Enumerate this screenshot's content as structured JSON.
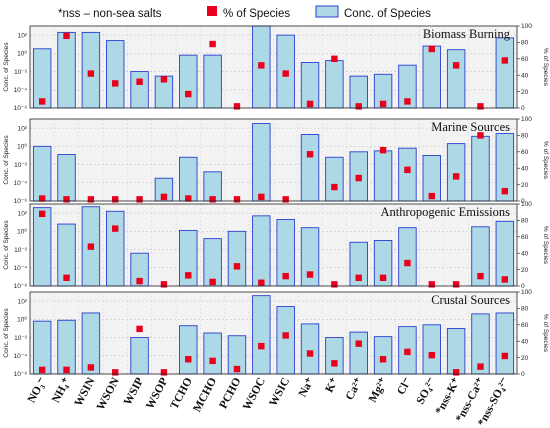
{
  "legend": {
    "note": "*nss – non-sea salts",
    "marker_label": "% of Species",
    "bar_label": "Conc. of Species"
  },
  "colors": {
    "bar_fill": "#add8e6",
    "bar_edge": "#2b3ecf",
    "marker": "#e8001c",
    "panel_bg": "#f3f3f3",
    "grid": "#bdbdbd"
  },
  "chart_data": {
    "type": "bar",
    "categories": [
      "NO₃⁻",
      "NH₄⁺",
      "WSIN",
      "WSON",
      "WSIP",
      "WSOP",
      "TCHO",
      "MCHO",
      "PCHO",
      "WSOC",
      "WSIC",
      "Na⁺",
      "K⁺",
      "Ca²⁺",
      "Mg²⁺",
      "Cl⁻",
      "SO₄²⁻",
      "*nss-K⁺",
      "*nss-Ca²⁺",
      "*nss-SO₄²⁻"
    ],
    "left_axis": {
      "label": "Conc. of Species",
      "scale": "log",
      "ticks": [
        "10⁻⁶",
        "10⁻⁴",
        "10⁻²",
        "10⁰",
        "10²"
      ],
      "range": [
        -6,
        3
      ]
    },
    "right_axis": {
      "label": "% of Species",
      "ticks": [
        "0",
        "20",
        "40",
        "60",
        "80",
        "100"
      ],
      "range": [
        0,
        100
      ]
    },
    "panels": [
      {
        "title": "Biomass Burning",
        "conc_log10": [
          0.5,
          2.3,
          2.3,
          1.4,
          -2.0,
          -2.5,
          -0.2,
          -0.2,
          null,
          3.0,
          2.0,
          -1.0,
          -0.8,
          -2.5,
          -2.3,
          -1.3,
          0.8,
          0.4,
          null,
          1.7
        ],
        "percent": [
          8,
          88,
          42,
          30,
          32,
          35,
          17,
          78,
          2,
          52,
          42,
          5,
          60,
          2,
          5,
          8,
          72,
          52,
          2,
          58
        ]
      },
      {
        "title": "Marine Sources",
        "conc_log10": [
          0.0,
          -0.9,
          null,
          null,
          null,
          -3.5,
          -1.2,
          -2.8,
          null,
          2.5,
          null,
          1.3,
          -1.2,
          -0.6,
          -0.5,
          -0.2,
          -1.0,
          0.3,
          1.1,
          1.4
        ],
        "percent": [
          3,
          2,
          2,
          2,
          2,
          5,
          3,
          2,
          2,
          5,
          2,
          57,
          17,
          28,
          62,
          38,
          6,
          30,
          80,
          12
        ]
      },
      {
        "title": "Anthropogenic Emissions",
        "conc_log10": [
          2.6,
          0.8,
          2.7,
          2.2,
          -2.4,
          null,
          0.1,
          -0.8,
          0.0,
          1.7,
          1.3,
          0.4,
          null,
          -1.2,
          -1.0,
          0.4,
          null,
          null,
          0.5,
          1.1
        ],
        "percent": [
          88,
          10,
          48,
          70,
          6,
          2,
          13,
          5,
          24,
          4,
          12,
          14,
          2,
          10,
          10,
          28,
          2,
          2,
          12,
          8
        ]
      },
      {
        "title": "Crustal Sources",
        "conc_log10": [
          -0.2,
          -0.1,
          0.7,
          null,
          -2.0,
          null,
          -0.7,
          -1.5,
          -1.8,
          2.6,
          1.4,
          -0.5,
          -2.0,
          -1.4,
          -1.9,
          -0.8,
          -0.6,
          -1.0,
          0.6,
          0.7
        ],
        "percent": [
          5,
          5,
          8,
          2,
          55,
          2,
          18,
          16,
          6,
          34,
          47,
          25,
          13,
          37,
          18,
          27,
          23,
          2,
          9,
          22
        ]
      }
    ]
  }
}
